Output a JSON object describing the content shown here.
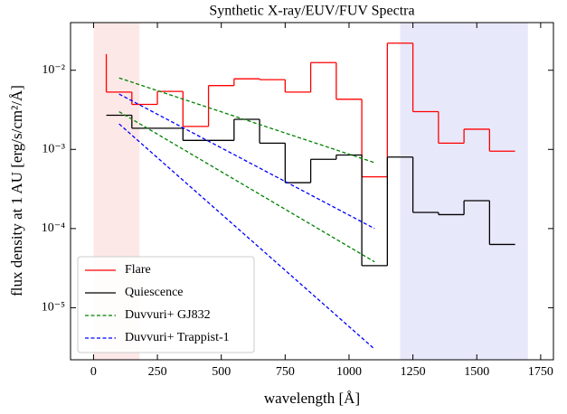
{
  "chart_data": {
    "type": "line",
    "title": "Synthetic X-ray/EUV/FUV Spectra",
    "x_label": "wavelength [Å]",
    "y_label": "flux density at 1 AU [erg/s/cm²/Å]",
    "y_log": true,
    "xlim": [
      -90,
      1800
    ],
    "ylim": [
      2.2e-06,
      0.04
    ],
    "xticks": [
      0,
      250,
      500,
      750,
      1000,
      1250,
      1500,
      1750
    ],
    "yticks": [
      {
        "value": 1e-05,
        "label": "10⁻⁵"
      },
      {
        "value": 0.0001,
        "label": "10⁻⁴"
      },
      {
        "value": 0.001,
        "label": "10⁻³"
      },
      {
        "value": 0.01,
        "label": "10⁻²"
      }
    ],
    "legend": "lower left",
    "shaded_regions": [
      {
        "xlim": [
          0,
          180
        ],
        "color": "#fde8e8"
      },
      {
        "xlim": [
          1200,
          1700
        ],
        "color": "#e8e8fb"
      }
    ],
    "series": [
      {
        "name": "Flare",
        "color": "#ff0000",
        "dash": false,
        "step": true,
        "x": [
          50,
          50,
          150,
          250,
          350,
          450,
          550,
          650,
          750,
          850,
          950,
          1050,
          1150,
          1250,
          1350,
          1450,
          1550,
          1650
        ],
        "values": [
          0.016,
          0.0053,
          0.0037,
          0.0054,
          0.00195,
          0.0064,
          0.0078,
          0.0076,
          0.0053,
          0.0125,
          0.0043,
          0.00045,
          0.022,
          0.003,
          0.0012,
          0.0018,
          0.00095,
          0.00095
        ]
      },
      {
        "name": "Quiescence",
        "color": "#000000",
        "dash": false,
        "step": true,
        "x": [
          50,
          150,
          250,
          350,
          450,
          550,
          650,
          750,
          850,
          950,
          1050,
          1150,
          1250,
          1350,
          1450,
          1550,
          1650
        ],
        "values": [
          0.0027,
          0.00185,
          0.00185,
          0.0013,
          0.0013,
          0.0024,
          0.0012,
          0.00038,
          0.00075,
          0.00085,
          3.4e-05,
          0.0008,
          0.00016,
          0.00015,
          0.000225,
          6.3e-05,
          6.3e-05
        ]
      },
      {
        "name": "Duvvuri+ GJ832",
        "color": "#008000",
        "dash": true,
        "step": false,
        "x": [
          100,
          1100
        ],
        "values": [
          0.008,
          0.00068
        ]
      },
      {
        "color": "#008000",
        "dash": true,
        "step": false,
        "x": [
          100,
          1100
        ],
        "values": [
          0.003,
          3.8e-05
        ]
      },
      {
        "name": "Duvvuri+ Trappist-1",
        "color": "#0000ff",
        "dash": true,
        "step": false,
        "x": [
          100,
          1100
        ],
        "values": [
          0.005,
          0.0001
        ]
      },
      {
        "color": "#0000ff",
        "dash": true,
        "step": false,
        "x": [
          100,
          1100
        ],
        "values": [
          0.0021,
          3e-06
        ]
      }
    ]
  }
}
